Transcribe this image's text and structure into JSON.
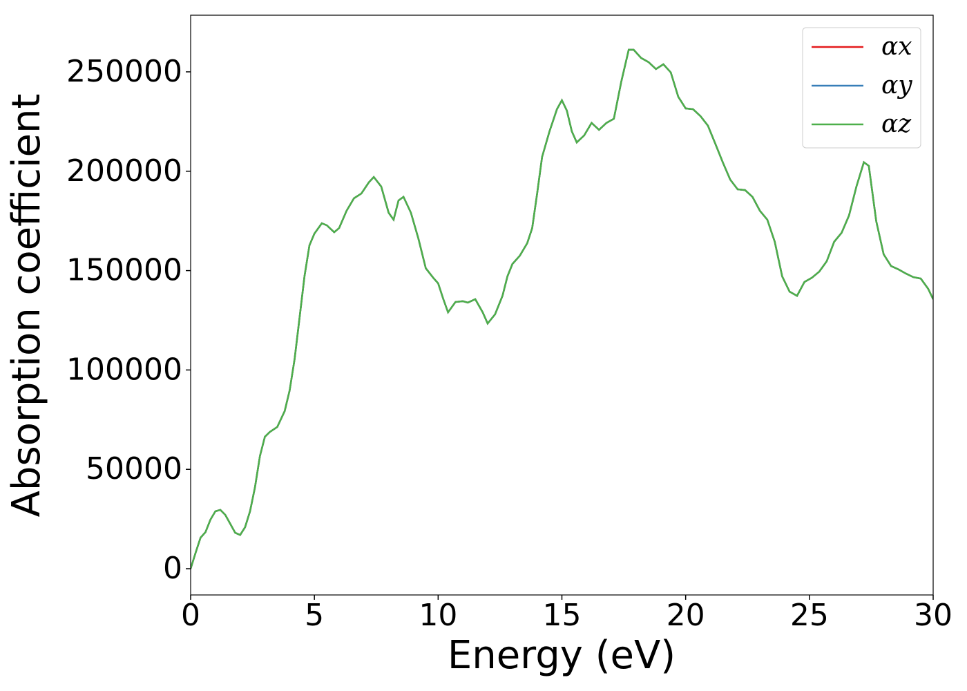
{
  "chart_data": {
    "type": "line",
    "xlabel": "Energy (eV)",
    "ylabel": "Absorption coefficient",
    "x": [
      0,
      0.2,
      0.4,
      0.6,
      0.8,
      1.0,
      1.2,
      1.4,
      1.6,
      1.8,
      2.0,
      2.2,
      2.4,
      2.6,
      2.8,
      3.0,
      3.2,
      3.5,
      3.8,
      4.0,
      4.2,
      4.4,
      4.6,
      4.8,
      5.0,
      5.3,
      5.5,
      5.8,
      6.0,
      6.3,
      6.6,
      6.9,
      7.2,
      7.4,
      7.7,
      8.0,
      8.2,
      8.4,
      8.6,
      8.9,
      9.2,
      9.5,
      9.8,
      10.0,
      10.2,
      10.4,
      10.7,
      11.0,
      11.2,
      11.5,
      11.8,
      12.0,
      12.3,
      12.6,
      12.8,
      13.0,
      13.3,
      13.6,
      13.8,
      14.0,
      14.2,
      14.5,
      14.8,
      15.0,
      15.2,
      15.4,
      15.6,
      15.9,
      16.2,
      16.5,
      16.8,
      17.1,
      17.4,
      17.7,
      17.9,
      18.2,
      18.5,
      18.8,
      19.1,
      19.4,
      19.7,
      20.0,
      20.3,
      20.6,
      20.9,
      21.2,
      21.5,
      21.8,
      22.1,
      22.4,
      22.7,
      23.0,
      23.3,
      23.6,
      23.9,
      24.2,
      24.5,
      24.8,
      25.1,
      25.4,
      25.7,
      26.0,
      26.3,
      26.6,
      26.9,
      27.2,
      27.4,
      27.7,
      28.0,
      28.3,
      28.6,
      28.9,
      29.2,
      29.5,
      29.8,
      30.0
    ],
    "series": [
      {
        "name": "αx",
        "color": "#e41a1c",
        "values": [
          0,
          8000,
          15600,
          18400,
          24700,
          28900,
          29600,
          27100,
          22600,
          18100,
          17000,
          20900,
          28900,
          41000,
          56700,
          66400,
          68800,
          71300,
          79300,
          89700,
          105400,
          126200,
          147100,
          162700,
          168600,
          173800,
          172800,
          169300,
          171400,
          180100,
          186400,
          188800,
          194400,
          197100,
          192300,
          179100,
          175600,
          185300,
          187100,
          179100,
          166200,
          151200,
          146400,
          143600,
          136000,
          129000,
          134200,
          134600,
          133900,
          135600,
          129000,
          123400,
          128000,
          137300,
          147100,
          153300,
          157500,
          163800,
          171400,
          188800,
          207200,
          220100,
          231200,
          235700,
          230500,
          220100,
          214500,
          218000,
          224300,
          220800,
          224300,
          226400,
          245100,
          261100,
          261100,
          257000,
          254900,
          251400,
          253800,
          249700,
          237500,
          231600,
          231200,
          227700,
          222900,
          213800,
          204500,
          195800,
          190900,
          190500,
          187100,
          180100,
          175600,
          164500,
          147100,
          139400,
          137300,
          144300,
          146400,
          149500,
          154700,
          164500,
          169000,
          177700,
          192300,
          204500,
          202700,
          174900,
          158200,
          152300,
          150600,
          148500,
          146700,
          146000,
          140800,
          135600
        ]
      },
      {
        "name": "αy",
        "color": "#377eb8",
        "values": [
          0,
          8000,
          15600,
          18400,
          24700,
          28900,
          29600,
          27100,
          22600,
          18100,
          17000,
          20900,
          28900,
          41000,
          56700,
          66400,
          68800,
          71300,
          79300,
          89700,
          105400,
          126200,
          147100,
          162700,
          168600,
          173800,
          172800,
          169300,
          171400,
          180100,
          186400,
          188800,
          194400,
          197100,
          192300,
          179100,
          175600,
          185300,
          187100,
          179100,
          166200,
          151200,
          146400,
          143600,
          136000,
          129000,
          134200,
          134600,
          133900,
          135600,
          129000,
          123400,
          128000,
          137300,
          147100,
          153300,
          157500,
          163800,
          171400,
          188800,
          207200,
          220100,
          231200,
          235700,
          230500,
          220100,
          214500,
          218000,
          224300,
          220800,
          224300,
          226400,
          245100,
          261100,
          261100,
          257000,
          254900,
          251400,
          253800,
          249700,
          237500,
          231600,
          231200,
          227700,
          222900,
          213800,
          204500,
          195800,
          190900,
          190500,
          187100,
          180100,
          175600,
          164500,
          147100,
          139400,
          137300,
          144300,
          146400,
          149500,
          154700,
          164500,
          169000,
          177700,
          192300,
          204500,
          202700,
          174900,
          158200,
          152300,
          150600,
          148500,
          146700,
          146000,
          140800,
          135600
        ]
      },
      {
        "name": "αz",
        "color": "#4daf4a",
        "values": [
          0,
          8000,
          15600,
          18400,
          24700,
          28900,
          29600,
          27100,
          22600,
          18100,
          17000,
          20900,
          28900,
          41000,
          56700,
          66400,
          68800,
          71300,
          79300,
          89700,
          105400,
          126200,
          147100,
          162700,
          168600,
          173800,
          172800,
          169300,
          171400,
          180100,
          186400,
          188800,
          194400,
          197100,
          192300,
          179100,
          175600,
          185300,
          187100,
          179100,
          166200,
          151200,
          146400,
          143600,
          136000,
          129000,
          134200,
          134600,
          133900,
          135600,
          129000,
          123400,
          128000,
          137300,
          147100,
          153300,
          157500,
          163800,
          171400,
          188800,
          207200,
          220100,
          231200,
          235700,
          230500,
          220100,
          214500,
          218000,
          224300,
          220800,
          224300,
          226400,
          245100,
          261100,
          261100,
          257000,
          254900,
          251400,
          253800,
          249700,
          237500,
          231600,
          231200,
          227700,
          222900,
          213800,
          204500,
          195800,
          190900,
          190500,
          187100,
          180100,
          175600,
          164500,
          147100,
          139400,
          137300,
          144300,
          146400,
          149500,
          154700,
          164500,
          169000,
          177700,
          192300,
          204500,
          202700,
          174900,
          158200,
          152300,
          150600,
          148500,
          146700,
          146000,
          140800,
          135600
        ]
      }
    ],
    "xlim": [
      0,
      30
    ],
    "xticks": [
      0,
      5,
      10,
      15,
      20,
      25,
      30
    ],
    "ylim": [
      -13200,
      278500
    ],
    "yticks": [
      0,
      50000,
      100000,
      150000,
      200000,
      250000
    ],
    "legend": "upper right",
    "grid": false
  }
}
